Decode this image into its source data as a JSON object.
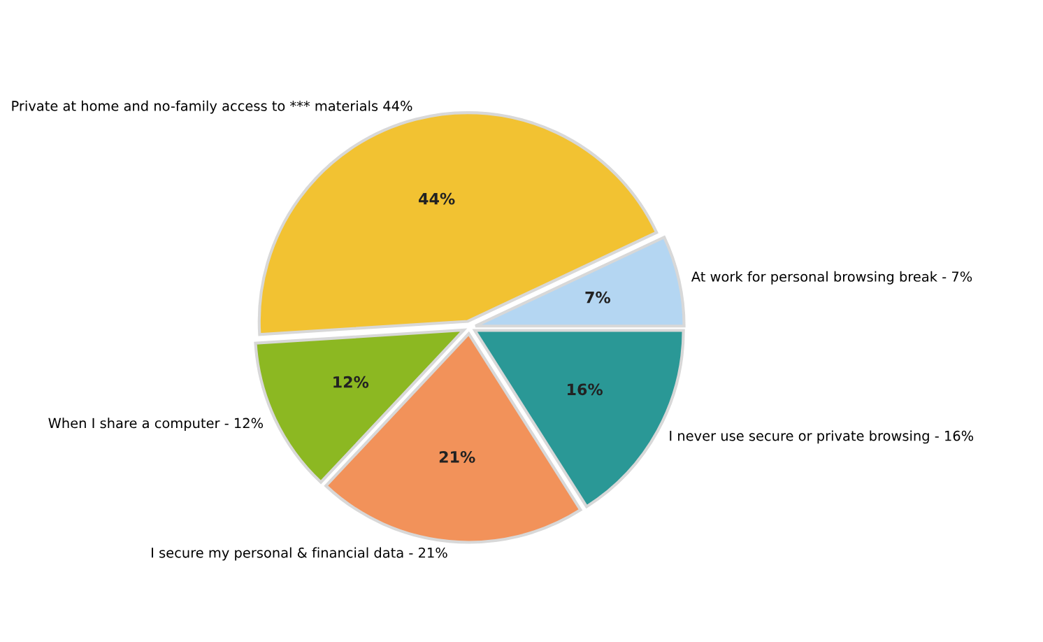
{
  "chart_data": {
    "type": "pie",
    "categories": [
      "At work for personal browsing break - 7%",
      "Private at home and no-family access to *** materials 44%",
      "When I share a computer - 12%",
      "I secure my personal & financial data - 21%",
      "I never use secure or private browsing - 16%"
    ],
    "values": [
      7,
      44,
      12,
      21,
      16
    ],
    "value_labels": [
      "7%",
      "44%",
      "12%",
      "21%",
      "16%"
    ],
    "colors": [
      "#b4d6f2",
      "#f2c232",
      "#8cb822",
      "#f2925a",
      "#2a9896"
    ],
    "legend": false
  }
}
